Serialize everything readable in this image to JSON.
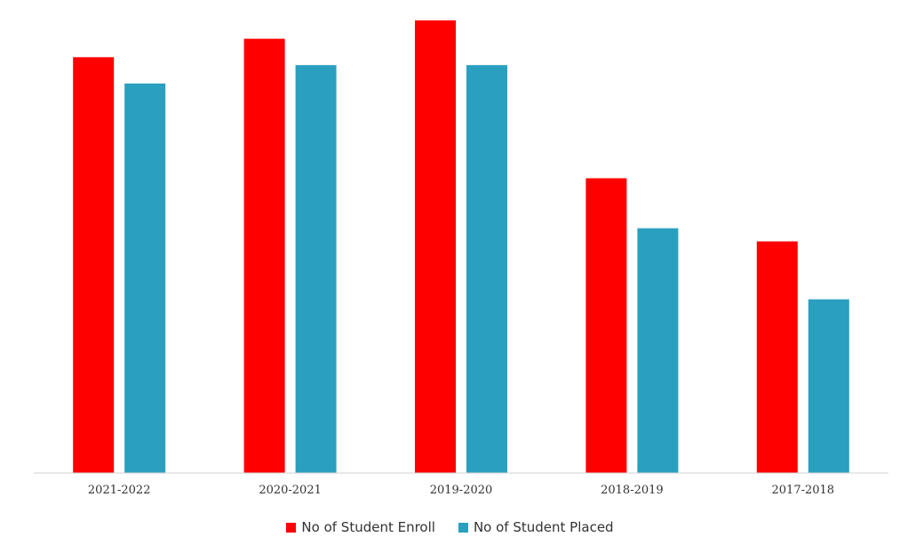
{
  "chart_data": {
    "type": "bar",
    "title": "",
    "xlabel": "",
    "ylabel": "",
    "categories": [
      "2021-2022",
      "2020-2021",
      "2019-2020",
      "2018-2019",
      "2017-2018"
    ],
    "series": [
      {
        "name": "No of Student Enroll",
        "color": "#ff0000",
        "values": [
          158,
          165,
          172,
          112,
          88
        ]
      },
      {
        "name": "No of Student Placed",
        "color": "#2b9fbf",
        "values": [
          148,
          155,
          155,
          93,
          66
        ]
      }
    ],
    "ylim": [
      0,
      175
    ],
    "grid": false,
    "y_axis_visible": false,
    "legend_position": "bottom"
  }
}
